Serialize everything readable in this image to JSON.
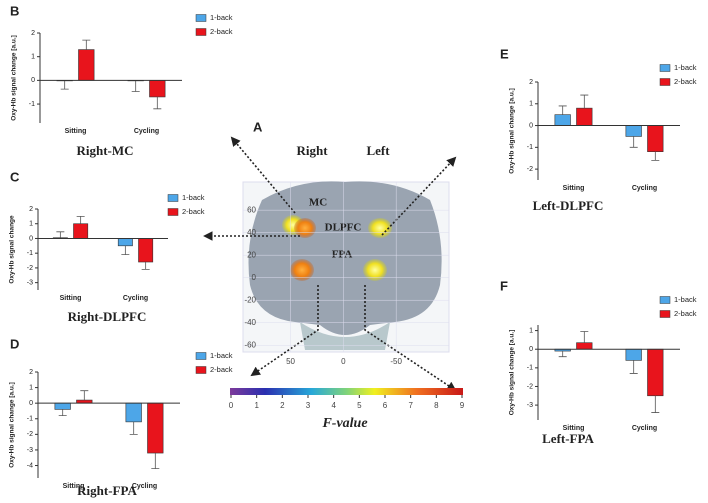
{
  "chart_data": [
    {
      "type": "bar",
      "panel_label": "B",
      "title": "Right-MC",
      "ylabel": "Oxy-Hb signal change [a.u.]",
      "categories": [
        "Sitting",
        "Cycling"
      ],
      "series": [
        {
          "name": "1-back",
          "color": "#4da6e8",
          "values": [
            -0.02,
            -0.02
          ],
          "errors": [
            0.35,
            0.45
          ]
        },
        {
          "name": "2-back",
          "color": "#e8141c",
          "values": [
            1.3,
            -0.7
          ],
          "errors": [
            0.4,
            0.5
          ]
        }
      ],
      "ylim": [
        -1.8,
        2
      ],
      "yticks": [
        -1,
        0,
        1,
        2
      ],
      "legend": "upper right"
    },
    {
      "type": "bar",
      "panel_label": "C",
      "title": "Right-DLPFC",
      "ylabel": "Oxy-Hb signal change",
      "categories": [
        "Sitting",
        "Cycling"
      ],
      "series": [
        {
          "name": "1-back",
          "color": "#4da6e8",
          "values": [
            0.05,
            -0.5
          ],
          "errors": [
            0.4,
            0.6
          ]
        },
        {
          "name": "2-back",
          "color": "#e8141c",
          "values": [
            1.0,
            -1.6
          ],
          "errors": [
            0.5,
            0.5
          ]
        }
      ],
      "ylim": [
        -3.5,
        2
      ],
      "yticks": [
        -3,
        -2,
        -1,
        0,
        1,
        2
      ],
      "legend": "upper right"
    },
    {
      "type": "bar",
      "panel_label": "D",
      "title": "Right-FPA",
      "ylabel": "Oxy-Hb signal change [a.u.]",
      "categories": [
        "Sitting",
        "Cycling"
      ],
      "series": [
        {
          "name": "1-back",
          "color": "#4da6e8",
          "values": [
            -0.4,
            -1.2
          ],
          "errors": [
            0.4,
            0.8
          ]
        },
        {
          "name": "2-back",
          "color": "#e8141c",
          "values": [
            0.2,
            -3.2
          ],
          "errors": [
            0.6,
            1.0
          ]
        }
      ],
      "ylim": [
        -4.8,
        2
      ],
      "yticks": [
        -4,
        -3,
        -2,
        -1,
        0,
        1,
        2
      ],
      "legend": "upper right"
    },
    {
      "type": "bar",
      "panel_label": "E",
      "title": "Left-DLPFC",
      "ylabel": "Oxy-Hb signal change [a.u.]",
      "categories": [
        "Sitting",
        "Cycling"
      ],
      "series": [
        {
          "name": "1-back",
          "color": "#4da6e8",
          "values": [
            0.5,
            -0.5
          ],
          "errors": [
            0.4,
            0.5
          ]
        },
        {
          "name": "2-back",
          "color": "#e8141c",
          "values": [
            0.8,
            -1.2
          ],
          "errors": [
            0.6,
            0.4
          ]
        }
      ],
      "ylim": [
        -2.5,
        2
      ],
      "yticks": [
        -2,
        -1,
        0,
        1,
        2
      ],
      "legend": "upper right"
    },
    {
      "type": "bar",
      "panel_label": "F",
      "title": "Left-FPA",
      "ylabel": "Oxy-Hb signal change [a.u.]",
      "categories": [
        "Sitting",
        "Cycling"
      ],
      "series": [
        {
          "name": "1-back",
          "color": "#4da6e8",
          "values": [
            -0.1,
            -0.6
          ],
          "errors": [
            0.3,
            0.7
          ]
        },
        {
          "name": "2-back",
          "color": "#e8141c",
          "values": [
            0.35,
            -2.5
          ],
          "errors": [
            0.6,
            0.9
          ]
        }
      ],
      "ylim": [
        -3.8,
        1.3
      ],
      "yticks": [
        -3,
        -2,
        -1,
        0,
        1
      ],
      "legend": "upper right"
    }
  ],
  "brain_map": {
    "panel_label": "A",
    "hemispheres": [
      "Right",
      "Left"
    ],
    "regions": [
      "MC",
      "DLPFC",
      "FPA"
    ],
    "xlim": [
      95,
      -100
    ],
    "xticks": [
      50,
      0,
      -50
    ],
    "ylim": [
      -66,
      85
    ],
    "yticks": [
      60,
      40,
      20,
      0,
      -20,
      -40,
      -60
    ],
    "colorbar": {
      "range": [
        0,
        9
      ],
      "ticks": [
        0,
        1,
        2,
        3,
        4,
        5,
        6,
        7,
        8,
        9
      ],
      "label": "F-value"
    }
  }
}
